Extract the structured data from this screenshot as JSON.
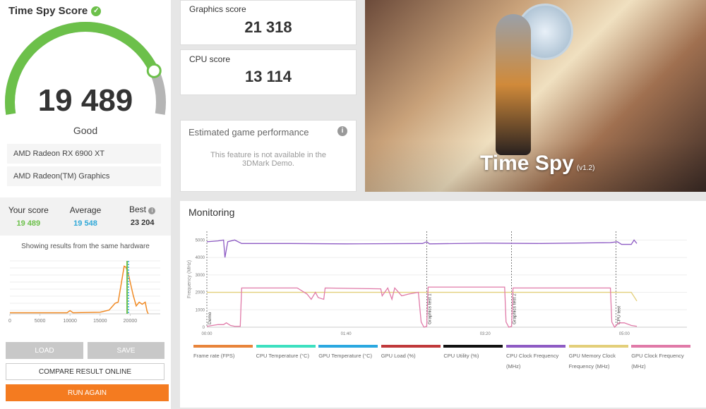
{
  "score_panel": {
    "title": "Time Spy Score",
    "score": "19 489",
    "score_fraction": 0.83,
    "rating": "Good",
    "hardware": [
      "AMD Radeon RX 6900 XT",
      "AMD Radeon(TM) Graphics"
    ],
    "your_score_label": "Your score",
    "your_score": "19 489",
    "average_label": "Average",
    "average": "19 548",
    "best_label": "Best",
    "best": "23 204",
    "same_hw_text": "Showing results from the same hardware",
    "colors": {
      "accent": "#6cc04a",
      "average": "#2fa8d8",
      "gauge_bg": "#b5b5b5"
    }
  },
  "buttons": {
    "load": "LOAD",
    "save": "SAVE",
    "compare": "COMPARE RESULT ONLINE",
    "run_again": "RUN AGAIN",
    "run_color": "#f47b20"
  },
  "graphics": {
    "label": "Graphics score",
    "value": "21 318"
  },
  "cpu": {
    "label": "CPU score",
    "value": "13 114"
  },
  "egp": {
    "title": "Estimated game performance",
    "text": "This feature is not available in the 3DMark Demo."
  },
  "hero": {
    "title": "Time Spy",
    "version": "(v1.2)"
  },
  "monitoring": {
    "title": "Monitoring"
  },
  "chart_data": [
    {
      "type": "line",
      "title": "",
      "xlabel": "",
      "ylabel": "",
      "xlim": [
        0,
        25000
      ],
      "x_ticks": [
        "0",
        "5000",
        "10000",
        "15000",
        "20000"
      ],
      "x": [
        0,
        5000,
        9500,
        10000,
        10500,
        15000,
        16500,
        17500,
        18000,
        19000,
        19300,
        19700,
        20500,
        21000,
        21500,
        22000,
        22500,
        22800,
        23000
      ],
      "values": [
        2,
        2,
        2,
        6,
        2,
        3,
        7,
        20,
        22,
        90,
        88,
        75,
        35,
        15,
        22,
        18,
        22,
        5,
        0
      ],
      "markers": {
        "your_score": 19489,
        "average": 19548
      },
      "color": "#f08a24"
    },
    {
      "type": "line",
      "ylabel": "Frequency (MHz)",
      "ylim": [
        0,
        5500
      ],
      "y_ticks": [
        "0",
        "1000",
        "2000",
        "3000",
        "4000",
        "5000"
      ],
      "x_ticks": [
        "00:00",
        "01:40",
        "03:20",
        "05:00"
      ],
      "xlim_seconds": [
        0,
        345
      ],
      "phases": [
        {
          "label": "Demo",
          "t": 0
        },
        {
          "label": "Graphics test 1",
          "t": 158
        },
        {
          "label": "Graphics test 2",
          "t": 219
        },
        {
          "label": "CPU test",
          "t": 294
        }
      ],
      "series": [
        {
          "name": "CPU Clock Frequency (MHz)",
          "color": "#8e5bc4",
          "points": [
            [
              0,
              4900
            ],
            [
              8,
              4950
            ],
            [
              12,
              5000
            ],
            [
              13,
              4000
            ],
            [
              15,
              4900
            ],
            [
              20,
              5000
            ],
            [
              25,
              4800
            ],
            [
              60,
              4800
            ],
            [
              100,
              4780
            ],
            [
              155,
              4800
            ],
            [
              158,
              4900
            ],
            [
              160,
              4780
            ],
            [
              200,
              4820
            ],
            [
              240,
              4800
            ],
            [
              290,
              4850
            ],
            [
              295,
              4900
            ],
            [
              298,
              4750
            ],
            [
              305,
              4750
            ],
            [
              307,
              5000
            ],
            [
              309,
              4800
            ]
          ]
        },
        {
          "name": "GPU Memory Clock Frequency (MHz)",
          "color": "#e3cf7a",
          "points": [
            [
              0,
              2000
            ],
            [
              305,
              2000
            ],
            [
              309,
              1500
            ]
          ]
        },
        {
          "name": "GPU Clock Frequency (MHz)",
          "color": "#e07aa8",
          "points": [
            [
              0,
              50
            ],
            [
              8,
              150
            ],
            [
              12,
              150
            ],
            [
              14,
              250
            ],
            [
              17,
              100
            ],
            [
              20,
              50
            ],
            [
              24,
              50
            ],
            [
              25,
              2250
            ],
            [
              65,
              2250
            ],
            [
              72,
              1900
            ],
            [
              75,
              1600
            ],
            [
              78,
              2000
            ],
            [
              80,
              1700
            ],
            [
              84,
              1600
            ],
            [
              85,
              2250
            ],
            [
              125,
              2200
            ],
            [
              126,
              1800
            ],
            [
              130,
              2250
            ],
            [
              133,
              1600
            ],
            [
              135,
              2250
            ],
            [
              140,
              1800
            ],
            [
              145,
              1900
            ],
            [
              152,
              2000
            ],
            [
              154,
              300
            ],
            [
              156,
              0
            ],
            [
              158,
              50
            ],
            [
              159,
              2300
            ],
            [
              214,
              2300
            ],
            [
              215,
              300
            ],
            [
              217,
              0
            ],
            [
              219,
              50
            ],
            [
              220,
              2250
            ],
            [
              290,
              2250
            ],
            [
              291,
              300
            ],
            [
              293,
              0
            ],
            [
              296,
              250
            ],
            [
              300,
              250
            ],
            [
              305,
              100
            ],
            [
              309,
              50
            ]
          ]
        }
      ],
      "legend": [
        "Frame rate (FPS)",
        "CPU Temperature (°C)",
        "GPU Temperature (°C)",
        "GPU Load (%)",
        "CPU Utility (%)",
        "CPU Clock Frequency (MHz)",
        "GPU Memory Clock Frequency (MHz)",
        "GPU Clock Frequency (MHz)"
      ],
      "legend_colors": [
        "#e8843a",
        "#3de0c0",
        "#2aa8e0",
        "#c0393b",
        "#111111",
        "#8e5bc4",
        "#e3cf7a",
        "#e07aa8"
      ],
      "legend_placement": "bottom",
      "grid": true
    }
  ]
}
